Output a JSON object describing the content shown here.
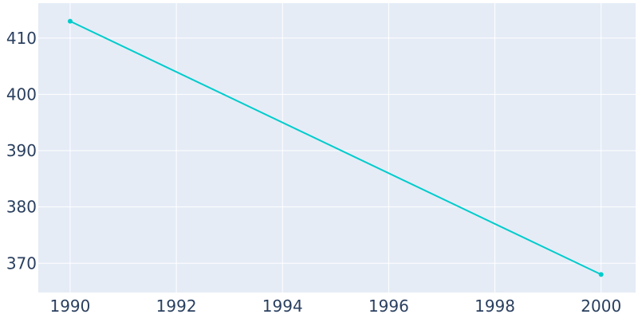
{
  "chart_data": {
    "type": "line",
    "title": "",
    "xlabel": "",
    "ylabel": "",
    "x": [
      1990,
      2000
    ],
    "series": [
      {
        "values": [
          413,
          368
        ],
        "color": "#00cccc"
      }
    ],
    "xlim": [
      1989.4,
      2000.65
    ],
    "ylim": [
      364.8,
      416.2
    ],
    "x_ticks": [
      1990,
      1992,
      1994,
      1996,
      1998,
      2000
    ],
    "y_ticks": [
      370,
      380,
      390,
      400,
      410
    ],
    "grid": true,
    "colors": {
      "plot_background": "#e5ecf6",
      "grid": "#ffffff",
      "tick_label": "#2a3f5f"
    }
  }
}
